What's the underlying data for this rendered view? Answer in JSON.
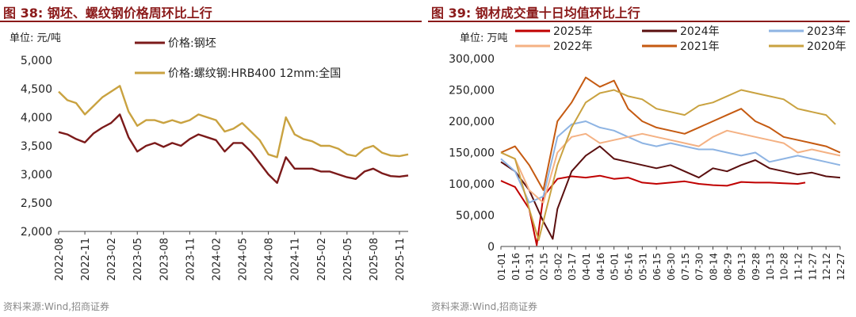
{
  "left_panel": {
    "title": "图 38:  钢坯、螺纹钢价格周环比上行",
    "source": "资料来源:Wind,招商证券",
    "chart_data": {
      "type": "line",
      "unit_label": "单位: 元/吨",
      "ylim": [
        2000,
        5000
      ],
      "yticks": [
        2000,
        2500,
        3000,
        3500,
        4000,
        4500,
        5000
      ],
      "ytick_labels": [
        "2,000",
        "2,500",
        "3,000",
        "3,500",
        "4,000",
        "4,500",
        "5,000"
      ],
      "x_tick_labels": [
        "2022-08",
        "2022-11",
        "2023-02",
        "2023-05",
        "2023-08",
        "2023-11",
        "2024-02",
        "2024-05",
        "2024-08",
        "2024-11",
        "2025-02",
        "2025-05",
        "2025-08",
        "2025-11"
      ],
      "series": [
        {
          "name": "价格:钢坯",
          "color": "#7b1a1a",
          "points": [
            [
              "2022-08",
              3740
            ],
            [
              "2022-09",
              3700
            ],
            [
              "2022-10",
              3620
            ],
            [
              "2022-11",
              3560
            ],
            [
              "2022-12",
              3720
            ],
            [
              "2023-01",
              3820
            ],
            [
              "2023-02",
              3900
            ],
            [
              "2023-03",
              4050
            ],
            [
              "2023-04",
              3650
            ],
            [
              "2023-05",
              3400
            ],
            [
              "2023-06",
              3500
            ],
            [
              "2023-07",
              3550
            ],
            [
              "2023-08",
              3480
            ],
            [
              "2023-09",
              3550
            ],
            [
              "2023-10",
              3500
            ],
            [
              "2023-11",
              3620
            ],
            [
              "2023-12",
              3700
            ],
            [
              "2024-01",
              3650
            ],
            [
              "2024-02",
              3600
            ],
            [
              "2024-03",
              3400
            ],
            [
              "2024-04",
              3550
            ],
            [
              "2024-05",
              3550
            ],
            [
              "2024-06",
              3400
            ],
            [
              "2024-07",
              3200
            ],
            [
              "2024-08",
              3000
            ],
            [
              "2024-09",
              2850
            ],
            [
              "2024-10",
              3300
            ],
            [
              "2024-11",
              3100
            ],
            [
              "2024-12",
              3100
            ],
            [
              "2025-01",
              3100
            ],
            [
              "2025-02",
              3050
            ],
            [
              "2025-03",
              3050
            ],
            [
              "2025-04",
              3000
            ],
            [
              "2025-05",
              2950
            ],
            [
              "2025-06",
              2920
            ],
            [
              "2025-07",
              3050
            ],
            [
              "2025-08",
              3100
            ],
            [
              "2025-09",
              3020
            ],
            [
              "2025-10",
              2970
            ],
            [
              "2025-11",
              2960
            ],
            [
              "2025-12",
              2980
            ]
          ]
        },
        {
          "name": "价格:螺纹钢:HRB400 12mm:全国",
          "color": "#c9a240",
          "points": [
            [
              "2022-08",
              4450
            ],
            [
              "2022-09",
              4300
            ],
            [
              "2022-10",
              4250
            ],
            [
              "2022-11",
              4050
            ],
            [
              "2022-12",
              4200
            ],
            [
              "2023-01",
              4350
            ],
            [
              "2023-02",
              4450
            ],
            [
              "2023-03",
              4550
            ],
            [
              "2023-04",
              4100
            ],
            [
              "2023-05",
              3850
            ],
            [
              "2023-06",
              3950
            ],
            [
              "2023-07",
              3950
            ],
            [
              "2023-08",
              3900
            ],
            [
              "2023-09",
              3950
            ],
            [
              "2023-10",
              3900
            ],
            [
              "2023-11",
              3950
            ],
            [
              "2023-12",
              4050
            ],
            [
              "2024-01",
              4000
            ],
            [
              "2024-02",
              3950
            ],
            [
              "2024-03",
              3750
            ],
            [
              "2024-04",
              3800
            ],
            [
              "2024-05",
              3900
            ],
            [
              "2024-06",
              3750
            ],
            [
              "2024-07",
              3600
            ],
            [
              "2024-08",
              3350
            ],
            [
              "2024-09",
              3300
            ],
            [
              "2024-10",
              4000
            ],
            [
              "2024-11",
              3700
            ],
            [
              "2024-12",
              3620
            ],
            [
              "2025-01",
              3580
            ],
            [
              "2025-02",
              3500
            ],
            [
              "2025-03",
              3500
            ],
            [
              "2025-04",
              3450
            ],
            [
              "2025-05",
              3350
            ],
            [
              "2025-06",
              3320
            ],
            [
              "2025-07",
              3450
            ],
            [
              "2025-08",
              3500
            ],
            [
              "2025-09",
              3380
            ],
            [
              "2025-10",
              3330
            ],
            [
              "2025-11",
              3320
            ],
            [
              "2025-12",
              3350
            ]
          ]
        }
      ]
    }
  },
  "right_panel": {
    "title": "图 39:  钢材成交量十日均值环比上行",
    "source": "资料来源:Wind,招商证券",
    "chart_data": {
      "type": "line",
      "unit_label": "单位: 万吨",
      "ylim": [
        0,
        300000
      ],
      "yticks": [
        0,
        50000,
        100000,
        150000,
        200000,
        250000,
        300000
      ],
      "ytick_labels": [
        "0",
        "50,000",
        "100,000",
        "150,000",
        "200,000",
        "250,000",
        "300,000"
      ],
      "x_tick_labels": [
        "01-01",
        "01-16",
        "01-31",
        "02-15",
        "03-02",
        "03-17",
        "04-01",
        "04-16",
        "05-01",
        "05-16",
        "05-31",
        "06-15",
        "06-30",
        "07-15",
        "07-30",
        "08-14",
        "08-29",
        "09-13",
        "09-28",
        "10-13",
        "10-28",
        "11-12",
        "11-27",
        "12-12",
        "12-27"
      ],
      "series": [
        {
          "name": "2025年",
          "color": "#c00000",
          "points": [
            [
              "01-01",
              105000
            ],
            [
              "01-16",
              95000
            ],
            [
              "01-31",
              60000
            ],
            [
              "02-08",
              2000
            ],
            [
              "02-15",
              80000
            ],
            [
              "03-02",
              108000
            ],
            [
              "03-17",
              112000
            ],
            [
              "04-01",
              110000
            ],
            [
              "04-16",
              113000
            ],
            [
              "05-01",
              108000
            ],
            [
              "05-16",
              110000
            ],
            [
              "05-31",
              102000
            ],
            [
              "06-15",
              100000
            ],
            [
              "06-30",
              102000
            ],
            [
              "07-15",
              104000
            ],
            [
              "07-30",
              100000
            ],
            [
              "08-14",
              98000
            ],
            [
              "08-29",
              97000
            ],
            [
              "09-13",
              103000
            ],
            [
              "09-28",
              102000
            ],
            [
              "10-13",
              102000
            ],
            [
              "10-28",
              101000
            ],
            [
              "11-12",
              100000
            ],
            [
              "11-20",
              102000
            ]
          ]
        },
        {
          "name": "2024年",
          "color": "#5a0f0f",
          "points": [
            [
              "01-01",
              135000
            ],
            [
              "01-16",
              120000
            ],
            [
              "01-31",
              90000
            ],
            [
              "02-15",
              40000
            ],
            [
              "02-25",
              12000
            ],
            [
              "03-02",
              60000
            ],
            [
              "03-17",
              120000
            ],
            [
              "04-01",
              145000
            ],
            [
              "04-16",
              160000
            ],
            [
              "05-01",
              140000
            ],
            [
              "05-16",
              135000
            ],
            [
              "05-31",
              130000
            ],
            [
              "06-15",
              125000
            ],
            [
              "06-30",
              130000
            ],
            [
              "07-15",
              120000
            ],
            [
              "07-30",
              110000
            ],
            [
              "08-14",
              125000
            ],
            [
              "08-29",
              120000
            ],
            [
              "09-13",
              130000
            ],
            [
              "09-28",
              138000
            ],
            [
              "10-13",
              125000
            ],
            [
              "10-28",
              120000
            ],
            [
              "11-12",
              115000
            ],
            [
              "11-27",
              118000
            ],
            [
              "12-12",
              112000
            ],
            [
              "12-27",
              110000
            ]
          ]
        },
        {
          "name": "2023年",
          "color": "#8eb4e3",
          "points": [
            [
              "01-01",
              140000
            ],
            [
              "01-16",
              120000
            ],
            [
              "01-31",
              70000
            ],
            [
              "02-15",
              80000
            ],
            [
              "03-02",
              175000
            ],
            [
              "03-17",
              195000
            ],
            [
              "04-01",
              200000
            ],
            [
              "04-16",
              190000
            ],
            [
              "05-01",
              185000
            ],
            [
              "05-16",
              175000
            ],
            [
              "05-31",
              165000
            ],
            [
              "06-15",
              160000
            ],
            [
              "06-30",
              165000
            ],
            [
              "07-15",
              160000
            ],
            [
              "07-30",
              155000
            ],
            [
              "08-14",
              155000
            ],
            [
              "08-29",
              150000
            ],
            [
              "09-13",
              145000
            ],
            [
              "09-28",
              150000
            ],
            [
              "10-13",
              135000
            ],
            [
              "10-28",
              140000
            ],
            [
              "11-12",
              145000
            ],
            [
              "11-27",
              140000
            ],
            [
              "12-12",
              135000
            ],
            [
              "12-27",
              130000
            ]
          ]
        },
        {
          "name": "2022年",
          "color": "#f4b183",
          "points": [
            [
              "01-01",
              150000
            ],
            [
              "01-16",
              140000
            ],
            [
              "01-31",
              90000
            ],
            [
              "02-15",
              70000
            ],
            [
              "03-02",
              150000
            ],
            [
              "03-17",
              175000
            ],
            [
              "04-01",
              180000
            ],
            [
              "04-16",
              165000
            ],
            [
              "05-01",
              170000
            ],
            [
              "05-16",
              175000
            ],
            [
              "05-31",
              180000
            ],
            [
              "06-15",
              175000
            ],
            [
              "06-30",
              170000
            ],
            [
              "07-15",
              165000
            ],
            [
              "07-30",
              160000
            ],
            [
              "08-14",
              175000
            ],
            [
              "08-29",
              185000
            ],
            [
              "09-13",
              180000
            ],
            [
              "09-28",
              175000
            ],
            [
              "10-13",
              170000
            ],
            [
              "10-28",
              165000
            ],
            [
              "11-12",
              150000
            ],
            [
              "11-27",
              155000
            ],
            [
              "12-12",
              150000
            ],
            [
              "12-27",
              145000
            ]
          ]
        },
        {
          "name": "2021年",
          "color": "#c55a11",
          "points": [
            [
              "01-01",
              150000
            ],
            [
              "01-16",
              160000
            ],
            [
              "01-31",
              130000
            ],
            [
              "02-15",
              90000
            ],
            [
              "03-02",
              200000
            ],
            [
              "03-17",
              230000
            ],
            [
              "04-01",
              270000
            ],
            [
              "04-16",
              255000
            ],
            [
              "05-01",
              265000
            ],
            [
              "05-16",
              220000
            ],
            [
              "05-31",
              200000
            ],
            [
              "06-15",
              190000
            ],
            [
              "06-30",
              185000
            ],
            [
              "07-15",
              180000
            ],
            [
              "07-30",
              190000
            ],
            [
              "08-14",
              200000
            ],
            [
              "08-29",
              210000
            ],
            [
              "09-13",
              220000
            ],
            [
              "09-28",
              200000
            ],
            [
              "10-13",
              190000
            ],
            [
              "10-28",
              175000
            ],
            [
              "11-12",
              170000
            ],
            [
              "11-27",
              165000
            ],
            [
              "12-12",
              160000
            ],
            [
              "12-27",
              150000
            ]
          ]
        },
        {
          "name": "2020年",
          "color": "#c9a240",
          "points": [
            [
              "01-01",
              150000
            ],
            [
              "01-16",
              140000
            ],
            [
              "01-31",
              60000
            ],
            [
              "02-10",
              10000
            ],
            [
              "02-15",
              40000
            ],
            [
              "03-02",
              130000
            ],
            [
              "03-17",
              190000
            ],
            [
              "04-01",
              230000
            ],
            [
              "04-16",
              245000
            ],
            [
              "05-01",
              250000
            ],
            [
              "05-16",
              240000
            ],
            [
              "05-31",
              235000
            ],
            [
              "06-15",
              220000
            ],
            [
              "06-30",
              215000
            ],
            [
              "07-15",
              210000
            ],
            [
              "07-30",
              225000
            ],
            [
              "08-14",
              230000
            ],
            [
              "08-29",
              240000
            ],
            [
              "09-13",
              250000
            ],
            [
              "09-28",
              245000
            ],
            [
              "10-13",
              240000
            ],
            [
              "10-28",
              235000
            ],
            [
              "11-12",
              220000
            ],
            [
              "11-27",
              215000
            ],
            [
              "12-12",
              210000
            ],
            [
              "12-22",
              195000
            ]
          ]
        }
      ]
    }
  }
}
